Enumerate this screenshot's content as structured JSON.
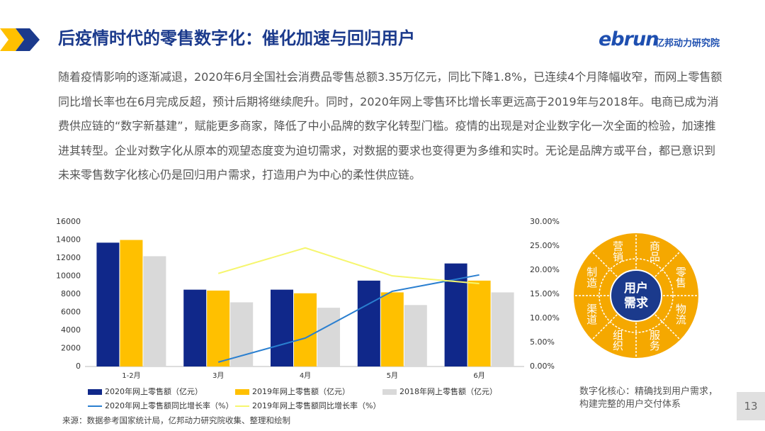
{
  "header": {
    "title": "后疫情时代的零售数字化：催化加速与回归用户",
    "logo": "ebrun",
    "logo_sub": "亿邦动力研究院"
  },
  "body_text": "随着疫情影响的逐渐减退，2020年6月全国社会消费品零售总额3.35万亿元，同比下降1.8%，已连续4个月降幅收窄，而网上零售额同比增长率也在6月完成反超，预计后期将继续爬升。同时，2020年网上零售环比增长率更远高于2019年与2018年。电商已成为消费供应链的“数字新基建”，赋能更多商家，降低了中小品牌的数字化转型门槛。疫情的出现是对企业数字化一次全面的检验，加速推进其转型。企业对数字化从原本的观望态度变为迫切需求，对数据的要求也变得更为多维和实时。无论是品牌方或平台，都已意识到未来零售数字化核心仍是回归用户需求，打造用户为中心的柔性供应链。",
  "chart_data": {
    "type": "bar-line",
    "categories": [
      "1-2月",
      "3月",
      "4月",
      "5月",
      "6月"
    ],
    "series": [
      {
        "name": "2020年网上零售额（亿元）",
        "type": "bar",
        "color": "#10288a",
        "values": [
          13700,
          8500,
          8500,
          9500,
          11400
        ]
      },
      {
        "name": "2019年网上零售额（亿元）",
        "type": "bar",
        "color": "#ffc000",
        "values": [
          14000,
          8400,
          8100,
          8200,
          9500
        ]
      },
      {
        "name": "2018年网上零售额（亿元）",
        "type": "bar",
        "color": "#d9d9d9",
        "values": [
          12200,
          7100,
          6500,
          6800,
          8200
        ]
      },
      {
        "name": "2020年网上零售额同比增长率（%）",
        "type": "line",
        "axis": "y2",
        "color": "#2a7fd0",
        "values": [
          null,
          0.9,
          5.9,
          15.6,
          19.0
        ]
      },
      {
        "name": "2019年网上零售额同比增长率（%）",
        "type": "line",
        "axis": "y2",
        "color": "#f6f66e",
        "values": [
          null,
          19.3,
          24.6,
          18.8,
          17.2
        ]
      }
    ],
    "ylim": [
      0,
      16000
    ],
    "yticks": [
      0,
      2000,
      4000,
      6000,
      8000,
      10000,
      12000,
      14000,
      16000
    ],
    "y2lim": [
      0,
      30
    ],
    "y2ticks": [
      {
        "value": 0,
        "label": "0.00%"
      },
      {
        "value": 5,
        "label": "5.00%"
      },
      {
        "value": 10,
        "label": "10.00%"
      },
      {
        "value": 15,
        "label": "15.00%"
      },
      {
        "value": 20,
        "label": "20.00%"
      },
      {
        "value": 25,
        "label": "25.00%"
      },
      {
        "value": 30,
        "label": "30.00%"
      }
    ],
    "grid": false
  },
  "diagram": {
    "center": [
      "用户",
      "需求"
    ],
    "segments": [
      "商品",
      "零售",
      "物流",
      "服务",
      "组织",
      "渠道",
      "制造",
      "营销"
    ],
    "caption": "数字化核心：精确找到用户需求，构建完整的用户交付体系"
  },
  "source": "来源：数据参考国家统计局，亿邦动力研究院收集、整理和绘制",
  "page_number": 13
}
